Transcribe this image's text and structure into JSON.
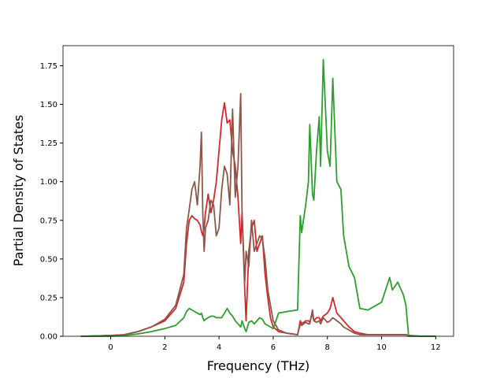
{
  "chart_data": {
    "type": "line",
    "xlabel": "Frequency (THz)",
    "ylabel": "Partial Density of States",
    "x": [
      -1.1,
      0,
      0.5,
      1.0,
      1.5,
      2.0,
      2.4,
      2.7,
      2.8,
      2.9,
      3.0,
      3.1,
      3.2,
      3.3,
      3.35,
      3.4,
      3.45,
      3.5,
      3.6,
      3.7,
      3.8,
      3.9,
      4.0,
      4.1,
      4.2,
      4.3,
      4.4,
      4.5,
      4.6,
      4.7,
      4.8,
      4.85,
      4.95,
      5.0,
      5.1,
      5.2,
      5.3,
      5.4,
      5.5,
      5.6,
      5.7,
      5.8,
      5.9,
      6.0,
      6.2,
      6.5,
      6.9,
      7.0,
      7.05,
      7.2,
      7.3,
      7.35,
      7.45,
      7.5,
      7.6,
      7.7,
      7.75,
      7.85,
      8.0,
      8.1,
      8.2,
      8.35,
      8.5,
      8.6,
      8.8,
      9.0,
      9.2,
      9.5,
      10.0,
      10.3,
      10.4,
      10.6,
      10.8,
      10.9,
      11.0,
      11.5,
      12.0
    ],
    "series": [
      {
        "color": "#d62728",
        "values": [
          0,
          0.005,
          0.01,
          0.03,
          0.06,
          0.1,
          0.18,
          0.35,
          0.6,
          0.75,
          0.78,
          0.76,
          0.75,
          0.72,
          0.68,
          0.65,
          0.7,
          0.8,
          0.92,
          0.8,
          0.88,
          1.0,
          1.2,
          1.4,
          1.51,
          1.38,
          1.4,
          1.2,
          1.1,
          0.9,
          0.6,
          0.8,
          0.3,
          0.1,
          0.55,
          0.7,
          0.75,
          0.55,
          0.6,
          0.65,
          0.4,
          0.25,
          0.12,
          0.06,
          0.03,
          0.02,
          0.01,
          0.1,
          0.08,
          0.1,
          0.1,
          0.09,
          0.15,
          0.1,
          0.12,
          0.12,
          0.1,
          0.13,
          0.15,
          0.18,
          0.25,
          0.15,
          0.12,
          0.1,
          0.06,
          0.03,
          0.02,
          0.01,
          0.01,
          0.01,
          0.01,
          0.01,
          0.01,
          0.01,
          0.005,
          0,
          0
        ]
      },
      {
        "color": "#8c564b",
        "values": [
          0,
          0.005,
          0.01,
          0.03,
          0.06,
          0.11,
          0.2,
          0.4,
          0.7,
          0.82,
          0.95,
          1.0,
          0.85,
          1.1,
          1.32,
          0.8,
          0.55,
          0.7,
          0.75,
          0.88,
          0.85,
          0.65,
          0.7,
          0.95,
          1.1,
          1.05,
          0.85,
          1.47,
          0.9,
          1.1,
          1.57,
          0.8,
          0.35,
          0.55,
          0.45,
          0.75,
          0.55,
          0.6,
          0.65,
          0.63,
          0.5,
          0.3,
          0.2,
          0.1,
          0.04,
          0.02,
          0.01,
          0.08,
          0.07,
          0.09,
          0.08,
          0.08,
          0.17,
          0.1,
          0.09,
          0.1,
          0.08,
          0.12,
          0.09,
          0.1,
          0.12,
          0.1,
          0.08,
          0.06,
          0.04,
          0.02,
          0.01,
          0.01,
          0.01,
          0.01,
          0.01,
          0.01,
          0.01,
          0.01,
          0.005,
          0,
          0
        ]
      },
      {
        "color": "#2ca02c",
        "values": [
          0,
          0,
          0.005,
          0.015,
          0.03,
          0.05,
          0.07,
          0.12,
          0.16,
          0.18,
          0.17,
          0.16,
          0.15,
          0.14,
          0.15,
          0.12,
          0.1,
          0.11,
          0.12,
          0.13,
          0.13,
          0.12,
          0.12,
          0.12,
          0.15,
          0.18,
          0.15,
          0.13,
          0.1,
          0.08,
          0.06,
          0.1,
          0.05,
          0.03,
          0.09,
          0.1,
          0.08,
          0.1,
          0.12,
          0.11,
          0.08,
          0.07,
          0.06,
          0.05,
          0.15,
          0.16,
          0.17,
          0.78,
          0.67,
          0.85,
          1.0,
          1.37,
          0.92,
          0.88,
          1.2,
          1.42,
          1.1,
          1.79,
          1.2,
          1.1,
          1.67,
          1.0,
          0.95,
          0.65,
          0.45,
          0.38,
          0.18,
          0.17,
          0.22,
          0.38,
          0.3,
          0.35,
          0.27,
          0.2,
          0,
          0,
          0
        ]
      }
    ],
    "xlim": [
      -1.76,
      12.66
    ],
    "ylim": [
      0,
      1.88
    ],
    "xticks": [
      0,
      2,
      4,
      6,
      8,
      10,
      12
    ],
    "yticks": [
      {
        "value": 0,
        "label": "0.00"
      },
      0.25,
      {
        "value": 0.5,
        "label": "0.50"
      },
      0.75,
      {
        "value": 1,
        "label": "1.00"
      },
      1.25,
      {
        "value": 1.5,
        "label": "1.50"
      },
      1.75
    ]
  }
}
